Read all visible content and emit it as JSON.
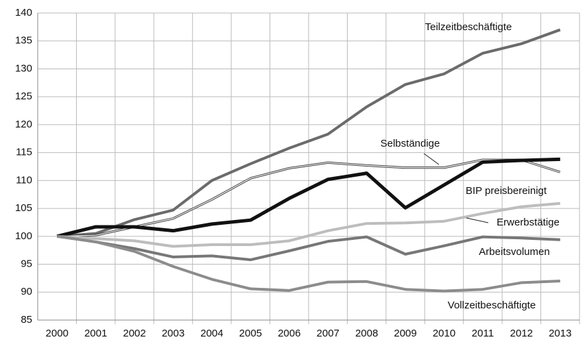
{
  "chart_data": {
    "type": "line",
    "categories": [
      "2000",
      "2001",
      "2002",
      "2003",
      "2004",
      "2005",
      "2006",
      "2007",
      "2008",
      "2009",
      "2010",
      "2011",
      "2012",
      "2013"
    ],
    "ylim": [
      85,
      140
    ],
    "yticks": [
      85,
      90,
      95,
      100,
      105,
      110,
      115,
      120,
      125,
      130,
      135,
      140
    ],
    "grid": true,
    "series": [
      {
        "name": "Teilzeitbeschäftigte",
        "color": "#6b6b6b",
        "values": [
          100,
          100.5,
          103,
          104.7,
          110,
          113,
          115.8,
          118.3,
          123.2,
          127.2,
          129.1,
          132.8,
          134.5,
          137
        ]
      },
      {
        "name": "Selbständige",
        "color": "#3a3a3a",
        "values": [
          100,
          100.2,
          101.7,
          103.2,
          106.6,
          110.4,
          112.2,
          113.2,
          112.7,
          112.3,
          112.3,
          113.7,
          113.7,
          111.5
        ]
      },
      {
        "name": "BIP preisbereinigt",
        "color": "#111111",
        "values": [
          100,
          101.7,
          101.7,
          101,
          102.2,
          102.9,
          106.8,
          110.2,
          111.3,
          105.1,
          109.2,
          113.3,
          113.6,
          113.8
        ]
      },
      {
        "name": "Erwerbstätige",
        "color": "#bdbdbd",
        "values": [
          100,
          99.6,
          99.2,
          98.2,
          98.5,
          98.5,
          99.2,
          101,
          102.3,
          102.4,
          102.7,
          104.1,
          105.3,
          105.9
        ]
      },
      {
        "name": "Arbeitsvolumen",
        "color": "#777777",
        "values": [
          100,
          99,
          97.8,
          96.3,
          96.5,
          95.8,
          97.4,
          99.1,
          99.9,
          96.8,
          98.3,
          99.9,
          99.7,
          99.4
        ]
      },
      {
        "name": "Vollzeitbeschäftigte",
        "color": "#8c8c8c",
        "values": [
          100,
          99,
          97.3,
          94.6,
          92.3,
          90.6,
          90.3,
          91.8,
          91.9,
          90.5,
          90.2,
          90.5,
          91.7,
          92
        ]
      }
    ]
  }
}
